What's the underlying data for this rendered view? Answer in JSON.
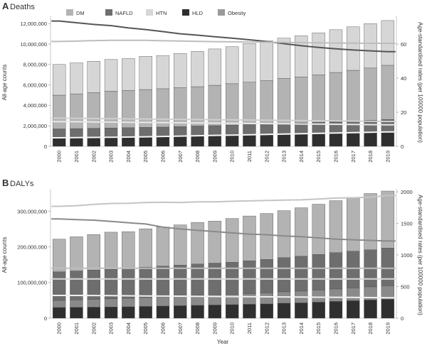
{
  "legend": [
    {
      "name": "DM",
      "color": "#b3b3b3"
    },
    {
      "name": "NAFLD",
      "color": "#6e6e6e"
    },
    {
      "name": "HTN",
      "color": "#d6d6d6"
    },
    {
      "name": "HLD",
      "color": "#2f2f2f"
    },
    {
      "name": "Obesity",
      "color": "#9a9a9a"
    }
  ],
  "xlabel_bottom": "Year",
  "chart_data": [
    {
      "type": "bar",
      "panel_letter": "A",
      "title": "Deaths",
      "ylabel": "All-age counts",
      "y2label": "Age-standardised rates (per 100000 population)",
      "categories": [
        "2000",
        "2001",
        "2002",
        "2003",
        "2004",
        "2005",
        "2006",
        "2007",
        "2008",
        "2009",
        "2010",
        "2011",
        "2012",
        "2013",
        "2014",
        "2015",
        "2016",
        "2017",
        "2018",
        "2019"
      ],
      "ylim": [
        0,
        12500000
      ],
      "y2lim": [
        0,
        75
      ],
      "yticks": [
        0,
        2000000,
        4000000,
        6000000,
        8000000,
        10000000,
        12000000
      ],
      "ytick_labels": [
        "0",
        "2,000,000",
        "4,000,000",
        "6,000,000",
        "8,000,000",
        "10,000,000",
        "12,000,000"
      ],
      "y2ticks": [
        0,
        20,
        40,
        60
      ],
      "y2tick_labels": [
        "0",
        "20",
        "40",
        "60"
      ],
      "series": [
        {
          "name": "HLD",
          "color": "#2f2f2f",
          "values": [
            800000,
            820000,
            840000,
            860000,
            880000,
            900000,
            920000,
            950000,
            980000,
            1010000,
            1040000,
            1070000,
            1100000,
            1130000,
            1170000,
            1200000,
            1240000,
            1280000,
            1320000,
            1360000
          ]
        },
        {
          "name": "NAFLD",
          "color": "#6e6e6e",
          "values": [
            900000,
            910000,
            920000,
            930000,
            940000,
            950000,
            960000,
            980000,
            1000000,
            1010000,
            1030000,
            1050000,
            1070000,
            1100000,
            1120000,
            1150000,
            1180000,
            1200000,
            1230000,
            1260000
          ]
        },
        {
          "name": "DM",
          "color": "#b3b3b3",
          "values": [
            3300000,
            3400000,
            3500000,
            3600000,
            3650000,
            3700000,
            3750000,
            3800000,
            3850000,
            3950000,
            4050000,
            4150000,
            4250000,
            4400000,
            4500000,
            4650000,
            4800000,
            4950000,
            5100000,
            5300000
          ]
        },
        {
          "name": "HTN",
          "color": "#d6d6d6",
          "values": [
            3000000,
            3030000,
            3060000,
            3100000,
            3110000,
            3250000,
            3250000,
            3350000,
            3450000,
            3550000,
            3620000,
            3780000,
            3880000,
            3950000,
            4020000,
            4100000,
            4180000,
            4250000,
            4350000,
            4380000
          ]
        }
      ],
      "lines": [
        {
          "name": "HTN",
          "color": "#555555",
          "values": [
            73.5,
            72.5,
            71.5,
            70.8,
            69.5,
            68.5,
            67.3,
            66.0,
            65.2,
            64.3,
            63.4,
            62.5,
            61.5,
            60.2,
            59.0,
            58.0,
            57.2,
            56.5,
            56.0,
            55.5
          ]
        },
        {
          "name": "DM",
          "color": "#bdbdbd",
          "values": [
            61.5,
            61.7,
            62.0,
            62.2,
            62.2,
            62.2,
            61.9,
            61.8,
            61.6,
            61.4,
            61.3,
            61.2,
            61.1,
            61.0,
            60.8,
            60.7,
            60.6,
            60.5,
            60.4,
            60.4
          ]
        },
        {
          "name": "HLD",
          "color": "#e8e8e8",
          "values": [
            14.5,
            14.4,
            14.3,
            14.2,
            14.1,
            14.0,
            13.9,
            13.8,
            13.7,
            13.6,
            13.5,
            13.4,
            13.3,
            13.2,
            13.1,
            13.0,
            12.9,
            12.8,
            12.7,
            12.6
          ]
        },
        {
          "name": "NAFLD",
          "color": "#cfcfcf",
          "values": [
            16.5,
            16.4,
            16.3,
            16.2,
            16.1,
            16.0,
            15.9,
            15.8,
            15.7,
            15.6,
            15.5,
            15.4,
            15.3,
            15.2,
            15.1,
            15.0,
            14.9,
            14.8,
            14.7,
            14.6
          ]
        },
        {
          "name": "Obesity",
          "color": "#f5f5f5",
          "values": [
            5.0,
            5.1,
            5.2,
            5.3,
            5.4,
            5.6,
            5.8,
            6.0,
            6.2,
            6.4,
            6.6,
            6.8,
            7.0,
            7.2,
            7.4,
            7.6,
            7.8,
            8.0,
            8.2,
            8.4
          ]
        }
      ]
    },
    {
      "type": "bar",
      "panel_letter": "B",
      "title": "DALYs",
      "ylabel": "All-age counts",
      "y2label": "Age-standardised rates (per 100000 population)",
      "categories": [
        "2000",
        "2001",
        "2002",
        "2003",
        "2004",
        "2005",
        "2006",
        "2007",
        "2008",
        "2009",
        "2010",
        "2011",
        "2012",
        "2013",
        "2014",
        "2015",
        "2016",
        "2017",
        "2018",
        "2019"
      ],
      "ylim": [
        0,
        355000000
      ],
      "y2lim": [
        0,
        2000
      ],
      "yticks": [
        0,
        100000000,
        200000000,
        300000000
      ],
      "ytick_labels": [
        "0",
        "100,000,000",
        "200,000,000",
        "300,000,000"
      ],
      "y2ticks": [
        0,
        500,
        1000,
        1500,
        2000
      ],
      "y2tick_labels": [
        "0",
        "500",
        "1000",
        "1500",
        "2000"
      ],
      "series": [
        {
          "name": "HLD",
          "color": "#2f2f2f",
          "values": [
            30000000,
            30500000,
            31000000,
            31500000,
            32000000,
            33000000,
            34000000,
            35000000,
            36000000,
            37000000,
            38000000,
            39000000,
            40000000,
            42000000,
            43000000,
            45000000,
            47000000,
            49000000,
            51000000,
            53000000
          ]
        },
        {
          "name": "Obesity",
          "color": "#8a8a8a",
          "values": [
            20000000,
            21000000,
            22000000,
            23000000,
            24000000,
            25000000,
            26000000,
            27000000,
            28000000,
            28500000,
            29000000,
            30000000,
            31000000,
            32000000,
            33000000,
            34000000,
            35000000,
            36000000,
            37000000,
            38000000
          ]
        },
        {
          "name": "NAFLD",
          "color": "#6e6e6e",
          "values": [
            80000000,
            81000000,
            82000000,
            83000000,
            84000000,
            85000000,
            86000000,
            87000000,
            88000000,
            89000000,
            90000000,
            92000000,
            94000000,
            96000000,
            98000000,
            100000000,
            102000000,
            103000000,
            104000000,
            106000000
          ]
        },
        {
          "name": "DM",
          "color": "#b3b3b3",
          "values": [
            92000000,
            96000000,
            100000000,
            104000000,
            103000000,
            108000000,
            110000000,
            113000000,
            117000000,
            118000000,
            123000000,
            126000000,
            129000000,
            132000000,
            136000000,
            141000000,
            146000000,
            151000000,
            158000000,
            160000000
          ]
        }
      ],
      "lines": [
        {
          "name": "DM",
          "color": "#c4c4c4",
          "values": [
            1770,
            1780,
            1800,
            1815,
            1818,
            1830,
            1835,
            1830,
            1840,
            1840,
            1850,
            1855,
            1862,
            1868,
            1872,
            1885,
            1900,
            1905,
            1915,
            1940
          ]
        },
        {
          "name": "HTN",
          "color": "#8a8a8a",
          "values": [
            1570,
            1560,
            1550,
            1530,
            1510,
            1490,
            1440,
            1410,
            1390,
            1370,
            1350,
            1330,
            1320,
            1300,
            1290,
            1270,
            1250,
            1240,
            1230,
            1220
          ]
        },
        {
          "name": "Obesity",
          "color": "#bdbdbd",
          "values": [
            790,
            790,
            790,
            790,
            790,
            790,
            790,
            790,
            790,
            790,
            790,
            790,
            790,
            790,
            790,
            790,
            790,
            790,
            790,
            790
          ]
        },
        {
          "name": "NAFLD",
          "color": "#d9d9d9",
          "values": [
            620,
            620,
            620,
            620,
            620,
            620,
            620,
            620,
            620,
            620,
            620,
            620,
            620,
            620,
            620,
            620,
            620,
            620,
            620,
            620
          ]
        },
        {
          "name": "HLD",
          "color": "#f0f0f0",
          "values": [
            360,
            360,
            358,
            356,
            354,
            352,
            350,
            348,
            346,
            344,
            342,
            340,
            338,
            336,
            334,
            332,
            330,
            328,
            326,
            324
          ]
        }
      ]
    }
  ]
}
